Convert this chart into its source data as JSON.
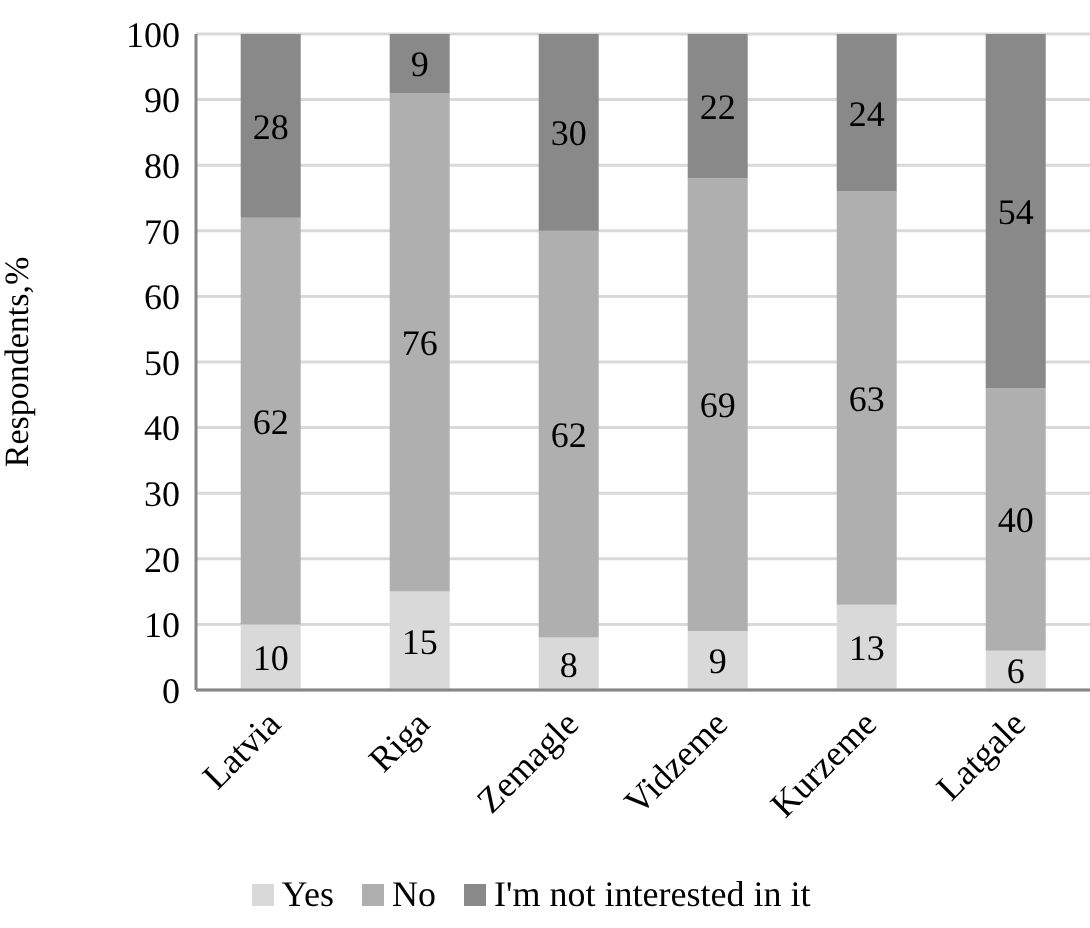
{
  "chart_data": {
    "type": "bar",
    "stacked": true,
    "ylabel": "Respondents,%",
    "categories": [
      "Latvia",
      "Riga",
      "Zemagle",
      "Vidzeme",
      "Kurzeme",
      "Latgale"
    ],
    "series": [
      {
        "name": "Yes",
        "color": "#d9d9d9",
        "values": [
          10,
          15,
          8,
          9,
          13,
          6
        ]
      },
      {
        "name": "No",
        "color": "#afafaf",
        "values": [
          62,
          76,
          62,
          69,
          63,
          40
        ]
      },
      {
        "name": "I'm not interested in it",
        "color": "#898989",
        "values": [
          28,
          9,
          30,
          22,
          24,
          54
        ]
      }
    ],
    "ylim": [
      0,
      100
    ],
    "yticks": [
      0,
      10,
      20,
      30,
      40,
      50,
      60,
      70,
      80,
      90,
      100
    ],
    "grid": "y",
    "legend": "bottom",
    "data_labels": true
  }
}
